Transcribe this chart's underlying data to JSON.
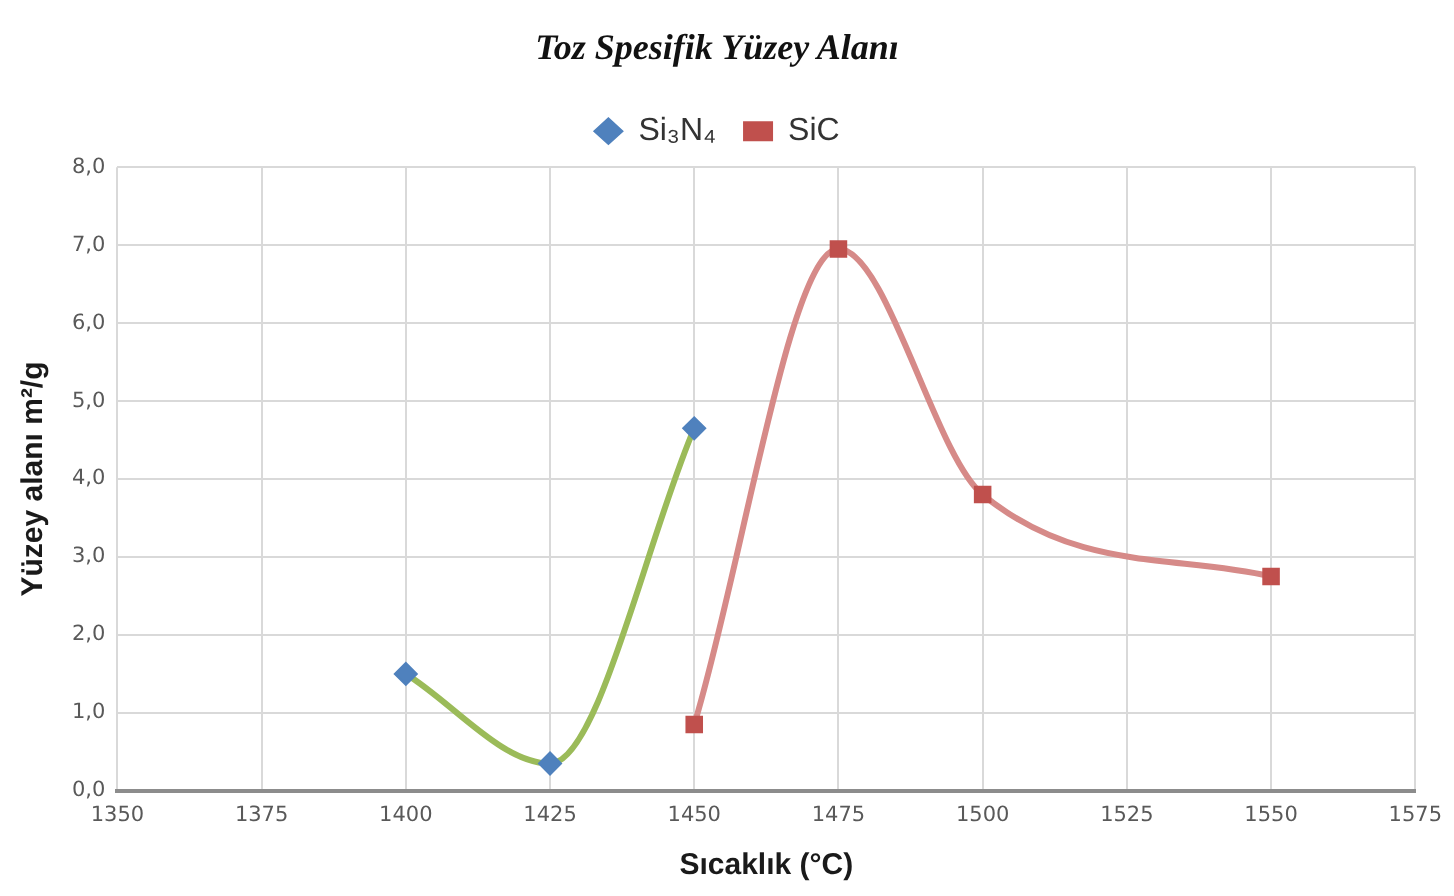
{
  "chart_data": {
    "type": "line",
    "title": "Toz Spesifik Yüzey Alanı",
    "xlabel": "Sıcaklık (°C)",
    "ylabel": "Yüzey alanı m²/g",
    "series": [
      {
        "name": "Si₃N₄",
        "color": "#9bbb59",
        "colors": [
          "#4f81bd",
          "#4f81bd",
          "#4f81bd"
        ],
        "marker": "diamond",
        "x": [
          1400,
          1425,
          1450
        ],
        "values": [
          1.5,
          0.35,
          4.65
        ]
      },
      {
        "name": "SiC",
        "color": "#d68a88",
        "colors": [
          "#c0504d",
          "#c0504d",
          "#c0504d",
          "#c0504d"
        ],
        "marker": "square",
        "x": [
          1450,
          1475,
          1500,
          1550
        ],
        "values": [
          0.85,
          6.95,
          3.8,
          2.75
        ]
      }
    ],
    "xlim": [
      1350,
      1575
    ],
    "xticks": [
      1350,
      1375,
      1400,
      1425,
      1450,
      1475,
      1500,
      1525,
      1550,
      1575
    ],
    "ylim": [
      0,
      8
    ],
    "yticks": [
      {
        "value": 0,
        "label": "0,0"
      },
      {
        "value": 1,
        "label": "1,0"
      },
      {
        "value": 2,
        "label": "2,0"
      },
      {
        "value": 3,
        "label": "3,0"
      },
      {
        "value": 4,
        "label": "4,0"
      },
      {
        "value": 5,
        "label": "5,0"
      },
      {
        "value": 6,
        "label": "6,0"
      },
      {
        "value": 7,
        "label": "7,0"
      },
      {
        "value": 8,
        "label": "8,0"
      }
    ],
    "grid": true,
    "legend": "top"
  }
}
